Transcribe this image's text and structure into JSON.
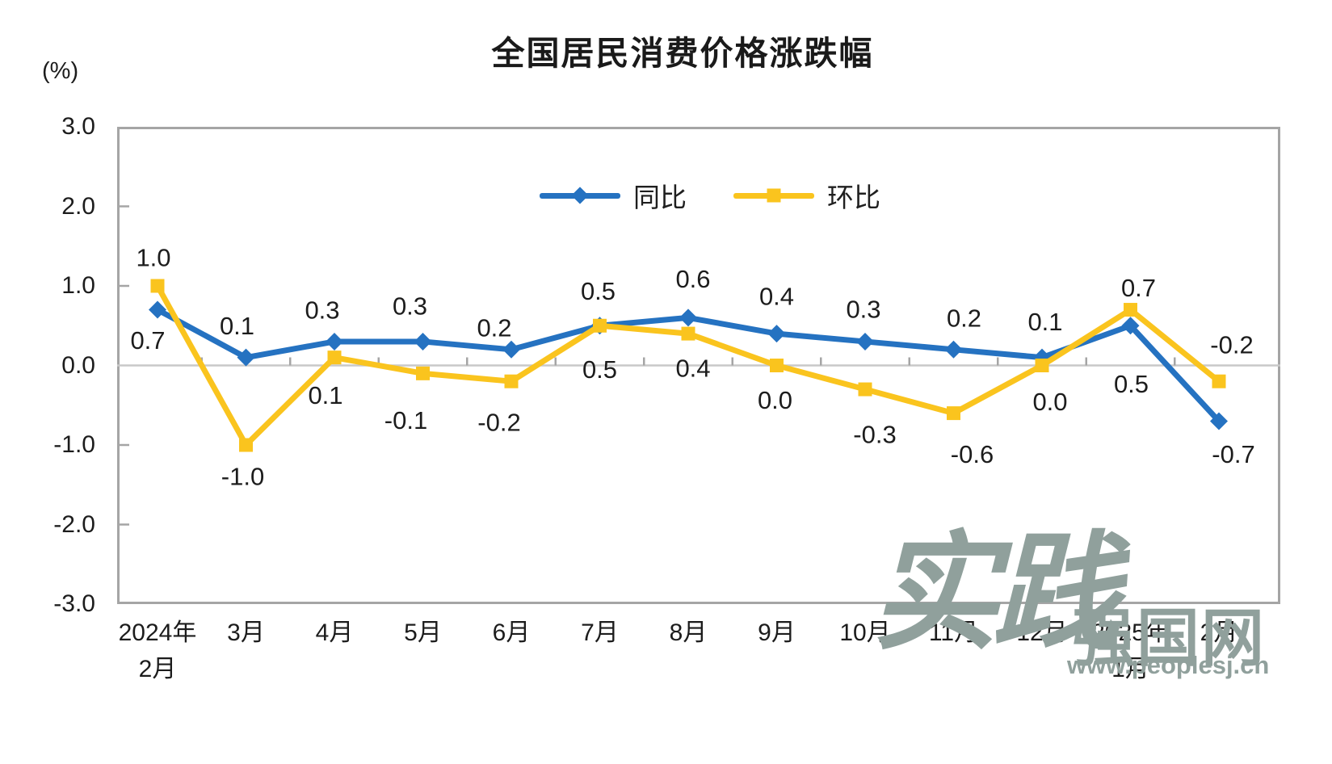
{
  "title": "全国居民消费价格涨跌幅",
  "axis": {
    "unit_label": "(%)"
  },
  "legend": [
    {
      "label": "同比",
      "marker": "diamond"
    },
    {
      "label": "环比",
      "marker": "square"
    }
  ],
  "colors": {
    "series_yoy_blue": "#2572C1",
    "series_mom_yellow": "#FAC41E",
    "plot_border": "#A5A5A5",
    "zero_line": "#C9C9C9",
    "tick": "#A5A5A5",
    "text": "#1C1C1C",
    "watermark": "#90A09C"
  },
  "watermark": {
    "calligraphy": "实践",
    "brand": "强国网",
    "url": "www.peoplesj.cn"
  },
  "chart_data": {
    "type": "line",
    "title": "全国居民消费价格涨跌幅",
    "ylabel": "(%)",
    "ylim": [
      -3.0,
      3.0
    ],
    "grid": "zero-line-only",
    "legend_position": "top-center-inside",
    "y_ticks": [
      {
        "label": "3.0",
        "value": 3
      },
      {
        "label": "2.0",
        "value": 2
      },
      {
        "label": "1.0",
        "value": 1
      },
      {
        "label": "0.0",
        "value": 0
      },
      {
        "label": "-1.0",
        "value": -1
      },
      {
        "label": "-2.0",
        "value": -2
      },
      {
        "label": "-3.0",
        "value": -3
      }
    ],
    "categories": [
      "2024年2月",
      "3月",
      "4月",
      "5月",
      "6月",
      "7月",
      "8月",
      "9月",
      "10月",
      "11月",
      "12月",
      "2025年1月",
      "2月"
    ],
    "x_tick_display": [
      [
        "2024年",
        "2月"
      ],
      [
        "3月"
      ],
      [
        "4月"
      ],
      [
        "5月"
      ],
      [
        "6月"
      ],
      [
        "7月"
      ],
      [
        "8月"
      ],
      [
        "9月"
      ],
      [
        "10月"
      ],
      [
        "11月"
      ],
      [
        "12月"
      ],
      [
        "2025年",
        "1月"
      ],
      [
        "2月"
      ]
    ],
    "series": [
      {
        "name": "同比",
        "color": "#2572C1",
        "marker": "diamond",
        "values": [
          0.7,
          0.1,
          0.3,
          0.3,
          0.2,
          0.5,
          0.6,
          0.4,
          0.3,
          0.2,
          0.1,
          0.5,
          -0.7
        ],
        "labels": [
          "0.7",
          "0.1",
          "0.3",
          "0.3",
          "0.2",
          "0.5",
          "0.6",
          "0.4",
          "0.3",
          "0.2",
          "0.1",
          "0.5",
          "-0.7"
        ],
        "label_offsets": [
          [
            -12,
            38
          ],
          [
            -11,
            -39
          ],
          [
            -15,
            -39
          ],
          [
            -16,
            -44
          ],
          [
            -21,
            -27
          ],
          [
            -2,
            -43
          ],
          [
            6,
            -48
          ],
          [
            0,
            -46
          ],
          [
            -2,
            -40
          ],
          [
            13,
            -39
          ],
          [
            4,
            -44
          ],
          [
            1,
            72
          ],
          [
            18,
            41
          ]
        ]
      },
      {
        "name": "环比",
        "color": "#FAC41E",
        "marker": "square",
        "values": [
          1.0,
          -1.0,
          0.1,
          -0.1,
          -0.2,
          0.5,
          0.4,
          0.0,
          -0.3,
          -0.6,
          0.0,
          0.7,
          -0.2
        ],
        "labels": [
          "1.0",
          "-1.0",
          "0.1",
          "-0.1",
          "-0.2",
          "0.5",
          "0.4",
          "0.0",
          "-0.3",
          "-0.6",
          "0.0",
          "0.7",
          "-0.2"
        ],
        "label_offsets": [
          [
            -5,
            -35
          ],
          [
            -4,
            39
          ],
          [
            -11,
            47
          ],
          [
            -21,
            58
          ],
          [
            -15,
            51
          ],
          [
            0,
            54
          ],
          [
            6,
            43
          ],
          [
            -2,
            43
          ],
          [
            12,
            56
          ],
          [
            23,
            51
          ],
          [
            10,
            45
          ],
          [
            10,
            -27
          ],
          [
            16,
            -45
          ]
        ]
      }
    ]
  }
}
